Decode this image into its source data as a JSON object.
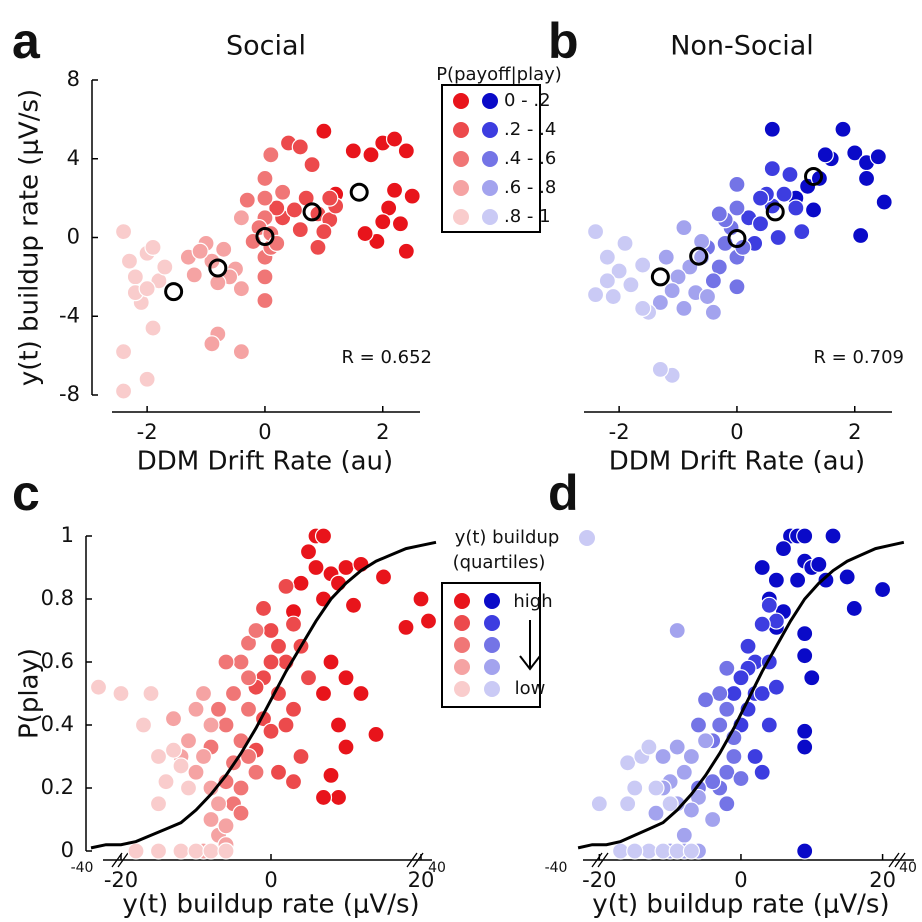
{
  "chart_data": [
    {
      "type": "scatter",
      "panel_label": "a",
      "title": "Social",
      "xlabel": "DDM Drift Rate (au)",
      "ylabel": "y(t) buildup rate (μV/s)",
      "xlim": [
        -2.8,
        2.7
      ],
      "ylim": [
        -8,
        8
      ],
      "xticks": [
        -2,
        0,
        2
      ],
      "yticks": [
        -8,
        -4,
        0,
        4,
        8
      ],
      "annotation": "R = 0.652",
      "legend": {
        "title": "P(payoff|play)",
        "labels": [
          "0 - .2",
          ".2 - .4",
          ".4 - .6",
          ".6 - .8",
          ".8 - 1"
        ]
      },
      "series": [
        {
          "style": "filled",
          "color": "#e8141b",
          "x": [
            1.2,
            1.5,
            1.8,
            2.0,
            2.2,
            2.4,
            2.1,
            2.3,
            2.4,
            1.9,
            2.5,
            1.7,
            2.0,
            2.2,
            1.0
          ],
          "values": [
            2.2,
            4.4,
            4.2,
            4.8,
            5.0,
            4.4,
            1.5,
            0.7,
            -0.7,
            -0.2,
            2.1,
            0.2,
            0.8,
            2.4,
            5.4
          ]
        },
        {
          "style": "filled",
          "color": "#ec4a4c",
          "x": [
            0.3,
            0.5,
            0.7,
            0.9,
            1.1,
            0.4,
            0.6,
            0.8,
            1.0,
            1.2,
            0.2,
            0.6,
            0.9,
            1.1
          ],
          "values": [
            1.0,
            1.4,
            2.0,
            1.2,
            0.9,
            4.8,
            4.6,
            3.7,
            0.3,
            1.6,
            1.5,
            0.4,
            -0.5,
            2.0
          ]
        },
        {
          "style": "filled",
          "color": "#f07676",
          "x": [
            0.0,
            0.0,
            0.0,
            0.0,
            0.0,
            0.1,
            -0.1,
            0.1,
            0.2,
            -0.2,
            0.0,
            0.3,
            0.1,
            -0.3
          ],
          "values": [
            3.0,
            2.0,
            1.0,
            -1.0,
            -2.0,
            -0.5,
            0.5,
            0.2,
            -0.3,
            -0.2,
            -3.2,
            2.3,
            4.2,
            1.9
          ]
        },
        {
          "style": "filled",
          "color": "#f5a3a3",
          "x": [
            -1.0,
            -0.7,
            -0.5,
            -0.9,
            -1.2,
            -0.4,
            -0.6,
            -1.3,
            -0.8,
            -0.9,
            -0.4,
            -0.4,
            -0.8,
            -1.1
          ],
          "values": [
            -0.3,
            -0.6,
            -1.6,
            -1.2,
            -1.9,
            -2.6,
            -2.0,
            -1.0,
            -4.9,
            -5.4,
            -5.8,
            1.0,
            -2.3,
            -0.7
          ]
        },
        {
          "style": "filled",
          "color": "#f9cccc",
          "x": [
            -2.4,
            -2.3,
            -2.2,
            -2.0,
            -1.9,
            -2.4,
            -2.4,
            -2.0,
            -1.9,
            -2.1,
            -2.2,
            -1.8,
            -1.7,
            -2.0
          ],
          "values": [
            0.3,
            -1.2,
            -2.0,
            -0.8,
            -0.5,
            -5.8,
            -7.8,
            -7.2,
            -4.6,
            -3.3,
            -2.8,
            -2.2,
            -1.5,
            -2.6
          ]
        },
        {
          "style": "open",
          "color": "#000000",
          "x": [
            -1.55,
            -0.8,
            0,
            0.8,
            1.6
          ],
          "values": [
            -2.75,
            -1.55,
            0.05,
            1.3,
            2.3
          ]
        }
      ]
    },
    {
      "type": "scatter",
      "panel_label": "b",
      "title": "Non-Social",
      "xlabel": "DDM Drift Rate (au)",
      "xlim": [
        -2.8,
        2.7
      ],
      "ylim": [
        -8,
        8
      ],
      "xticks": [
        -2,
        0,
        2
      ],
      "annotation": "R = 0.709",
      "series": [
        {
          "style": "filled",
          "color": "#0a0ac8",
          "x": [
            1.0,
            1.2,
            1.4,
            1.6,
            1.8,
            2.0,
            2.2,
            2.4,
            2.5,
            2.1,
            1.5,
            2.2,
            0.6,
            1.3
          ],
          "values": [
            2.0,
            2.6,
            3.0,
            4.0,
            5.5,
            4.3,
            3.8,
            4.1,
            1.8,
            0.1,
            4.2,
            3.0,
            5.5,
            1.4
          ]
        },
        {
          "style": "filled",
          "color": "#3d3de0",
          "x": [
            0.2,
            0.4,
            0.6,
            0.8,
            1.0,
            0.5,
            0.9,
            0.7,
            0.3,
            1.1,
            0.6,
            0.4
          ],
          "values": [
            1.0,
            0.7,
            1.6,
            2.2,
            1.5,
            2.2,
            3.2,
            0.0,
            -0.3,
            0.3,
            3.5,
            2.0
          ]
        },
        {
          "style": "filled",
          "color": "#7474e6",
          "x": [
            0.0,
            0.0,
            -0.1,
            -0.2,
            0.0,
            -0.3,
            -0.4,
            -0.2,
            0.1,
            0.0,
            -0.3,
            -0.5
          ],
          "values": [
            2.7,
            1.5,
            0.5,
            -0.3,
            -1.0,
            -1.5,
            -2.2,
            0.9,
            -0.5,
            -2.5,
            1.2,
            -0.5
          ]
        },
        {
          "style": "filled",
          "color": "#a3a3ee",
          "x": [
            -0.6,
            -0.8,
            -1.0,
            -0.7,
            -1.2,
            -0.5,
            -0.9,
            -1.1,
            -0.6,
            -0.4,
            -1.3,
            -0.9
          ],
          "values": [
            -1.0,
            -1.5,
            -2.0,
            -2.8,
            -1.0,
            -3.0,
            -3.6,
            -2.7,
            -0.2,
            -3.8,
            -3.3,
            0.5
          ]
        },
        {
          "style": "filled",
          "color": "#cacaf5",
          "x": [
            -2.4,
            -2.2,
            -2.0,
            -1.8,
            -1.6,
            -2.1,
            -2.4,
            -1.5,
            -1.6,
            -1.1,
            -1.3,
            -1.9,
            -2.2
          ],
          "values": [
            0.3,
            -1.0,
            -1.7,
            -2.4,
            -1.4,
            -3.0,
            -2.9,
            -3.8,
            -3.6,
            -7.0,
            -6.7,
            -0.3,
            -2.2
          ]
        },
        {
          "style": "open",
          "color": "#000000",
          "x": [
            -1.3,
            -0.65,
            0,
            0.65,
            1.3
          ],
          "values": [
            -2.0,
            -0.95,
            -0.05,
            1.3,
            3.1
          ]
        }
      ]
    },
    {
      "type": "scatter",
      "panel_label": "c",
      "xlabel": "y(t) buildup rate (μV/s)",
      "ylabel": "P(play)",
      "xlim": [
        -24,
        22
      ],
      "ylim": [
        0,
        1
      ],
      "xticks": [
        -20,
        0,
        20
      ],
      "yticks": [
        0,
        0.2,
        0.4,
        0.6,
        0.8,
        1
      ],
      "axis_break_labels": [
        "-40",
        "40"
      ],
      "legend": {
        "title": [
          "y(t) buildup",
          "(quartiles)"
        ],
        "labels": [
          "high",
          "low"
        ]
      },
      "series": [
        {
          "style": "filled",
          "color": "#e8141b",
          "x": [
            6,
            7,
            5,
            6,
            8,
            10,
            12,
            15,
            4,
            9,
            7,
            11,
            20,
            18,
            21,
            3,
            8,
            10,
            7,
            12,
            9,
            10,
            14,
            8,
            9,
            7
          ],
          "values": [
            1.0,
            1.0,
            0.95,
            0.9,
            0.88,
            0.9,
            0.91,
            0.87,
            0.85,
            0.85,
            0.8,
            0.78,
            0.8,
            0.71,
            0.73,
            0.76,
            0.6,
            0.55,
            0.5,
            0.5,
            0.4,
            0.33,
            0.37,
            0.24,
            0.17,
            0.17
          ]
        },
        {
          "style": "filled",
          "color": "#ec4a4c",
          "x": [
            0,
            1,
            2,
            3,
            -1,
            1,
            3,
            2,
            -1,
            0,
            4,
            -2,
            1,
            3,
            0,
            -2,
            5,
            -1,
            4,
            2
          ],
          "values": [
            0.7,
            0.65,
            0.6,
            0.72,
            0.55,
            0.5,
            0.45,
            0.4,
            0.42,
            0.38,
            0.3,
            0.32,
            0.25,
            0.22,
            0.6,
            0.52,
            0.55,
            0.77,
            0.65,
            0.84
          ]
        },
        {
          "style": "filled",
          "color": "#f07676",
          "x": [
            -4,
            -5,
            -3,
            -6,
            -4,
            -3,
            -5,
            -2,
            -4,
            -6,
            -3,
            -7,
            -5,
            -4,
            -8,
            -3,
            -6,
            -2
          ],
          "values": [
            0.6,
            0.5,
            0.45,
            0.4,
            0.35,
            0.3,
            0.28,
            0.25,
            0.2,
            0.22,
            0.55,
            0.45,
            0.15,
            0.12,
            0.33,
            0.66,
            0.6,
            0.7
          ]
        },
        {
          "style": "filled",
          "color": "#f5a3a3",
          "x": [
            -10,
            -9,
            -8,
            -11,
            -9,
            -10,
            -8,
            -7,
            -8,
            -7,
            -9,
            -6,
            -12,
            -13,
            -6,
            -11
          ],
          "values": [
            0.45,
            0.5,
            0.4,
            0.35,
            0.3,
            0.25,
            0.2,
            0.15,
            0.1,
            0.05,
            0.0,
            0.08,
            0.3,
            0.42,
            0.02,
            0.2
          ]
        },
        {
          "style": "filled",
          "color": "#f9cccc",
          "x": [
            -23,
            -20,
            -16,
            -17,
            -15,
            -15,
            -14,
            -13,
            -18,
            -15,
            -12,
            -10,
            -8,
            -6,
            -12,
            -11
          ],
          "values": [
            0.52,
            0.5,
            0.5,
            0.4,
            0.3,
            0.15,
            0.22,
            0.32,
            0.0,
            0.0,
            0.0,
            0.0,
            0.0,
            0.0,
            0.27,
            0.2
          ]
        },
        {
          "style": "line",
          "color": "#000000",
          "x": [
            -24,
            -22,
            -20,
            -18,
            -16,
            -14,
            -12,
            -10,
            -8,
            -6,
            -4,
            -2,
            0,
            2,
            4,
            6,
            8,
            10,
            12,
            14,
            16,
            18,
            20,
            22
          ],
          "values": [
            0.01,
            0.02,
            0.02,
            0.03,
            0.05,
            0.07,
            0.09,
            0.13,
            0.18,
            0.24,
            0.31,
            0.39,
            0.48,
            0.57,
            0.65,
            0.73,
            0.8,
            0.85,
            0.89,
            0.92,
            0.94,
            0.96,
            0.97,
            0.98
          ]
        }
      ]
    },
    {
      "type": "scatter",
      "panel_label": "d",
      "xlabel": "y(t) buildup rate (μV/s)",
      "xlim": [
        -24,
        25
      ],
      "ylim": [
        0,
        1
      ],
      "xticks": [
        -20,
        0,
        20
      ],
      "axis_break_labels": [
        "-40",
        "40"
      ],
      "series": [
        {
          "style": "filled",
          "color": "#0a0ac8",
          "x": [
            7,
            8,
            9,
            13,
            9,
            10,
            11,
            8,
            6,
            5,
            12,
            15,
            20,
            16,
            4,
            6,
            9,
            9,
            10,
            9,
            9,
            9,
            3,
            5
          ],
          "values": [
            1.0,
            1.0,
            1.0,
            1.0,
            0.92,
            0.9,
            0.91,
            0.86,
            0.96,
            0.86,
            0.86,
            0.87,
            0.83,
            0.77,
            0.8,
            0.76,
            0.69,
            0.62,
            0.55,
            0.38,
            0.33,
            0.0,
            0.9,
            0.71
          ]
        },
        {
          "style": "filled",
          "color": "#3d3de0",
          "x": [
            4,
            5,
            3,
            2,
            1,
            0,
            2,
            3,
            4,
            1,
            0,
            2,
            3,
            -1,
            4,
            5,
            1
          ],
          "values": [
            0.78,
            0.73,
            0.72,
            0.6,
            0.58,
            0.55,
            0.5,
            0.5,
            0.6,
            0.45,
            0.4,
            0.3,
            0.25,
            0.5,
            0.4,
            0.52,
            0.65
          ]
        },
        {
          "style": "filled",
          "color": "#7474e6",
          "x": [
            -2,
            -3,
            -1,
            -2,
            -4,
            -3,
            -5,
            -6,
            -1,
            -3,
            -2,
            -4,
            -2,
            -6,
            0
          ],
          "values": [
            0.45,
            0.4,
            0.3,
            0.25,
            0.35,
            0.5,
            0.48,
            0.4,
            0.36,
            0.2,
            0.15,
            0.22,
            0.58,
            0.2,
            0.23
          ]
        },
        {
          "style": "filled",
          "color": "#a3a3ee",
          "x": [
            -5,
            -7,
            -8,
            -6,
            -9,
            -10,
            -7,
            -8,
            -11,
            -9,
            -12,
            -6,
            -8,
            -10,
            -4,
            -9,
            -11
          ],
          "values": [
            0.35,
            0.3,
            0.25,
            0.17,
            0.33,
            0.22,
            0.13,
            0.05,
            0.2,
            0.15,
            0.12,
            0.0,
            0.0,
            0.0,
            0.1,
            0.7,
            0.3
          ]
        },
        {
          "style": "filled",
          "color": "#cacaf5",
          "x": [
            -16,
            -14,
            -13,
            -15,
            -16,
            -20,
            -12,
            -13,
            -17,
            -15,
            -11,
            -9,
            -7,
            -10
          ],
          "values": [
            0.28,
            0.3,
            0.33,
            0.2,
            0.15,
            0.15,
            0.2,
            0.0,
            0.0,
            0.0,
            0.0,
            0.0,
            0.0,
            0.15
          ]
        },
        {
          "style": "line",
          "color": "#000000",
          "x": [
            -23,
            -21,
            -19,
            -17,
            -15,
            -13,
            -11,
            -9,
            -7,
            -5,
            -3,
            -1,
            1,
            3,
            5,
            7,
            9,
            11,
            13,
            15,
            17,
            19,
            21,
            23
          ],
          "values": [
            0.01,
            0.02,
            0.02,
            0.03,
            0.05,
            0.07,
            0.09,
            0.13,
            0.18,
            0.24,
            0.31,
            0.39,
            0.48,
            0.57,
            0.65,
            0.73,
            0.8,
            0.85,
            0.89,
            0.92,
            0.94,
            0.96,
            0.97,
            0.98
          ]
        }
      ]
    }
  ]
}
